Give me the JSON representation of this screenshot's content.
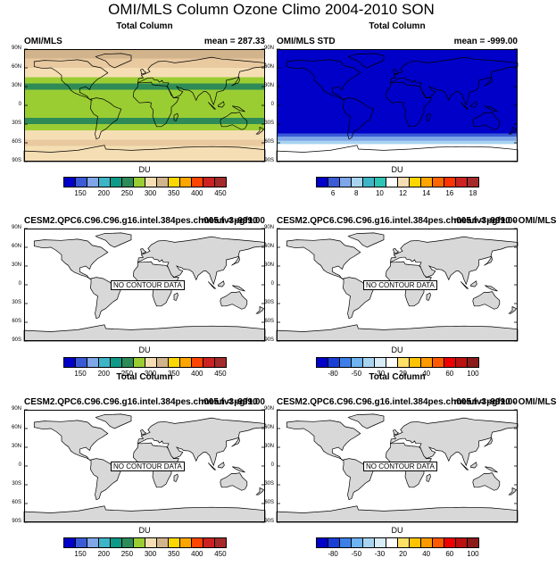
{
  "page_title": "OMI/MLS Column Ozone Climo 2004-2010 SON",
  "chart_data": [
    {
      "type": "heatmap",
      "title": "Total Column",
      "left_label": "OMI/MLS",
      "right_label": "mean = 287.33",
      "y_ticks": [
        "90N",
        "60N",
        "30N",
        "0",
        "30S",
        "60S",
        "90S"
      ],
      "ylim": [
        -90,
        90
      ],
      "units": "DU",
      "colorbar_labels": [
        "150",
        "200",
        "250",
        "300",
        "350",
        "400",
        "450"
      ],
      "colorbar_colors": [
        "#0000c8",
        "#3a5ad6",
        "#7ea6e8",
        "#3db5c7",
        "#0e9a87",
        "#2e8b57",
        "#9acd32",
        "#f5deb3",
        "#d2b48c",
        "#ffd700",
        "#ffa500",
        "#ff4500",
        "#cc2222",
        "#a52a2a"
      ],
      "zonal_bands": [
        {
          "lat": [
            75,
            90
          ],
          "color": "#d2b48c"
        },
        {
          "lat": [
            60,
            75
          ],
          "color": "#e8c9a0"
        },
        {
          "lat": [
            45,
            60
          ],
          "color": "#f5deb3"
        },
        {
          "lat": [
            35,
            45
          ],
          "color": "#9acd32"
        },
        {
          "lat": [
            25,
            35
          ],
          "color": "#2e8b57"
        },
        {
          "lat": [
            15,
            25
          ],
          "color": "#9acd32"
        },
        {
          "lat": [
            -10,
            15
          ],
          "color": "#9acd32"
        },
        {
          "lat": [
            -20,
            -10
          ],
          "color": "#9acd32"
        },
        {
          "lat": [
            -30,
            -20
          ],
          "color": "#2e8b57"
        },
        {
          "lat": [
            -40,
            -30
          ],
          "color": "#9acd32"
        },
        {
          "lat": [
            -55,
            -40
          ],
          "color": "#f5deb3"
        },
        {
          "lat": [
            -65,
            -55
          ],
          "color": "#e8c9a0"
        },
        {
          "lat": [
            -90,
            -65
          ],
          "color": "#f5deb3"
        }
      ]
    },
    {
      "type": "heatmap",
      "title": "Total Column",
      "left_label": "OMI/MLS STD",
      "right_label": "mean = -999.00",
      "y_ticks": [
        "90N",
        "60N",
        "30N",
        "0",
        "30S",
        "60S",
        "90S"
      ],
      "ylim": [
        -90,
        90
      ],
      "units": "DU",
      "colorbar_labels": [
        "6",
        "8",
        "10",
        "12",
        "14",
        "16",
        "18"
      ],
      "colorbar_colors": [
        "#0000c8",
        "#3a5ad6",
        "#7ea6e8",
        "#a9d4f0",
        "#3db5c7",
        "#2ec4b6",
        "#ffffff",
        "#f5deb3",
        "#ffd700",
        "#ffa500",
        "#ff6600",
        "#ff3300",
        "#cc2222",
        "#a52a2a"
      ],
      "zonal_bands": [
        {
          "lat": [
            -45,
            90
          ],
          "color": "#0000c8"
        },
        {
          "lat": [
            -50,
            -45
          ],
          "color": "#3a5ad6"
        },
        {
          "lat": [
            -57,
            -50
          ],
          "color": "#7ea6e8"
        },
        {
          "lat": [
            -62,
            -57
          ],
          "color": "#a9d4f0"
        }
      ]
    },
    {
      "type": "heatmap",
      "title": "",
      "left_label": "CESM2.QPC6.C96.C96.g16.intel.384pes.ch005.fv3pgf10",
      "right_label": "mean = -999.00",
      "y_ticks": [
        "90N",
        "60N",
        "30N",
        "0",
        "30S",
        "60S",
        "90S"
      ],
      "ylim": [
        -90,
        90
      ],
      "units": "DU",
      "no_data_label": "NO CONTOUR DATA",
      "colorbar_labels": [
        "150",
        "200",
        "250",
        "300",
        "350",
        "400",
        "450"
      ],
      "colorbar_colors": [
        "#0000c8",
        "#3a5ad6",
        "#7ea6e8",
        "#3db5c7",
        "#0e9a87",
        "#2e8b57",
        "#9acd32",
        "#f5deb3",
        "#d2b48c",
        "#ffd700",
        "#ffa500",
        "#ff4500",
        "#cc2222",
        "#a52a2a"
      ]
    },
    {
      "type": "heatmap",
      "title": "",
      "left_label": "CESM2.QPC6.C96.C96.g16.intel.384pes.ch005.fv3pgf10 - OMI/MLS",
      "right_label": "mean = -999.00",
      "y_ticks": [
        "90N",
        "60N",
        "30N",
        "0",
        "30S",
        "60S",
        "90S"
      ],
      "ylim": [
        -90,
        90
      ],
      "units": "DU",
      "no_data_label": "NO CONTOUR DATA",
      "colorbar_labels": [
        "-80",
        "-50",
        "-30",
        "20",
        "40",
        "60",
        "100"
      ],
      "colorbar_colors": [
        "#0000c8",
        "#1a3fd6",
        "#3d7fe8",
        "#6fb3f0",
        "#a9d4f0",
        "#d8ecf8",
        "#ffffff",
        "#ffe066",
        "#ffc400",
        "#ff9900",
        "#ff5a00",
        "#ee0000",
        "#bb1111",
        "#8b1a1a"
      ]
    },
    {
      "type": "heatmap",
      "title": "Total Column",
      "left_label": "CESM2.QPC6.C96.C96.g16.intel.384pes.ch005.fv3pgf10",
      "right_label": "mean = -999.00",
      "y_ticks": [
        "90N",
        "60N",
        "30N",
        "0",
        "30S",
        "60S",
        "90S"
      ],
      "ylim": [
        -90,
        90
      ],
      "units": "DU",
      "no_data_label": "NO CONTOUR DATA",
      "colorbar_labels": [
        "150",
        "200",
        "250",
        "300",
        "350",
        "400",
        "450"
      ],
      "colorbar_colors": [
        "#0000c8",
        "#3a5ad6",
        "#7ea6e8",
        "#3db5c7",
        "#0e9a87",
        "#2e8b57",
        "#9acd32",
        "#f5deb3",
        "#d2b48c",
        "#ffd700",
        "#ffa500",
        "#ff4500",
        "#cc2222",
        "#a52a2a"
      ]
    },
    {
      "type": "heatmap",
      "title": "Total Column",
      "left_label": "CESM2.QPC6.C96.C96.g16.intel.384pes.ch005.fv3pgf10 - OMI/MLS",
      "right_label": "mean = -999.00",
      "y_ticks": [
        "90N",
        "60N",
        "30N",
        "0",
        "30S",
        "60S",
        "90S"
      ],
      "ylim": [
        -90,
        90
      ],
      "units": "DU",
      "no_data_label": "NO CONTOUR DATA",
      "colorbar_labels": [
        "-80",
        "-50",
        "-30",
        "20",
        "40",
        "60",
        "100"
      ],
      "colorbar_colors": [
        "#0000c8",
        "#1a3fd6",
        "#3d7fe8",
        "#6fb3f0",
        "#a9d4f0",
        "#d8ecf8",
        "#ffffff",
        "#ffe066",
        "#ffc400",
        "#ff9900",
        "#ff5a00",
        "#ee0000",
        "#bb1111",
        "#8b1a1a"
      ]
    }
  ]
}
